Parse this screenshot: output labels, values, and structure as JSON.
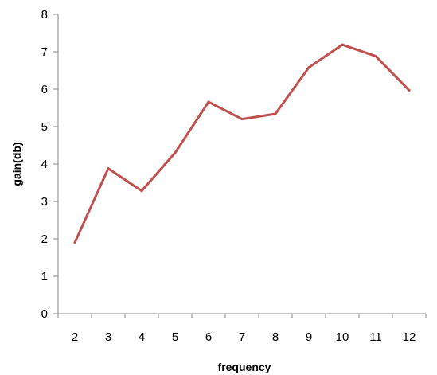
{
  "chart_data": {
    "type": "line",
    "title": "",
    "xlabel": "frequency",
    "ylabel": "gain(db)",
    "x": [
      2,
      3,
      4,
      5,
      6,
      7,
      8,
      9,
      10,
      11,
      12
    ],
    "y_ticks": [
      0,
      1,
      2,
      3,
      4,
      5,
      6,
      7,
      8
    ],
    "ylim": [
      0,
      8
    ],
    "grid": false,
    "legend": "none",
    "series": [
      {
        "values": [
          1.9,
          3.88,
          3.28,
          4.3,
          5.66,
          5.2,
          5.34,
          6.58,
          7.19,
          6.88,
          5.97
        ],
        "color": "#c0504d"
      }
    ],
    "colors": {
      "axis": "#868686",
      "text": "#000000"
    }
  }
}
